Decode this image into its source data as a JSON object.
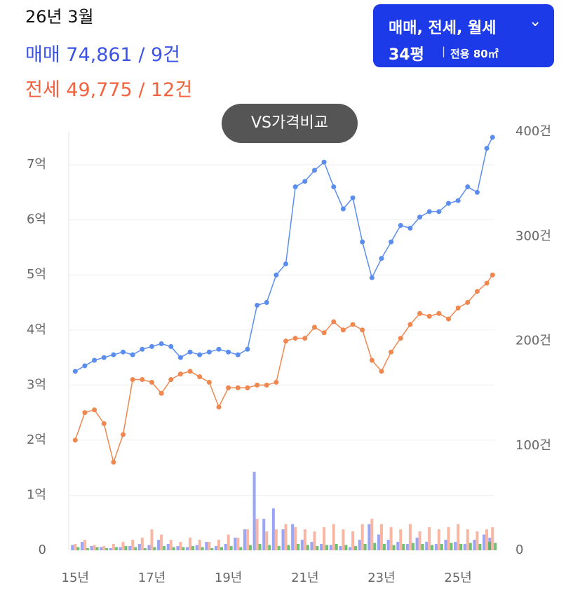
{
  "header": {
    "date": "26년 3월",
    "sale": "매매 74,861 / 9건",
    "jeonse": "전세 49,775 / 12건"
  },
  "filter": {
    "types": "매매, 전세, 월세",
    "size": "34평",
    "area": "전용 80㎡"
  },
  "compare_button": "VS가격비교",
  "chart_data": {
    "type": "line-bar",
    "x": [
      15,
      15.25,
      15.5,
      15.75,
      16,
      16.25,
      16.5,
      16.75,
      17,
      17.25,
      17.5,
      17.75,
      18,
      18.25,
      18.5,
      18.75,
      19,
      19.25,
      19.5,
      19.75,
      20,
      20.25,
      20.5,
      20.75,
      21,
      21.25,
      21.5,
      21.75,
      22,
      22.25,
      22.5,
      22.75,
      23,
      23.25,
      23.5,
      23.75,
      24,
      24.25,
      24.5,
      24.75,
      25,
      25.25,
      25.5,
      25.75,
      25.9
    ],
    "xlim": [
      14.83,
      25.95
    ],
    "xticks": [
      {
        "value": 15,
        "label": "15년"
      },
      {
        "value": 17,
        "label": "17년"
      },
      {
        "value": 19,
        "label": "19년"
      },
      {
        "value": 21,
        "label": "21년"
      },
      {
        "value": 23,
        "label": "23년"
      },
      {
        "value": 25,
        "label": "25년"
      }
    ],
    "ylim": [
      0,
      7.6
    ],
    "yticks": [
      0,
      {
        "value": 1,
        "label": "1억"
      },
      {
        "value": 2,
        "label": "2억"
      },
      {
        "value": 3,
        "label": "3억"
      },
      {
        "value": 4,
        "label": "4억"
      },
      {
        "value": 5,
        "label": "5억"
      },
      {
        "value": 6,
        "label": "6억"
      },
      {
        "value": 7,
        "label": "7억"
      }
    ],
    "y2lim": [
      0,
      400
    ],
    "y2ticks": [
      0,
      {
        "value": 100,
        "label": "100건"
      },
      {
        "value": 200,
        "label": "200건"
      },
      {
        "value": 300,
        "label": "300건"
      },
      {
        "value": 400,
        "label": "400건"
      }
    ],
    "grid": true,
    "series": [
      {
        "kind": "line",
        "color": "#5b8def",
        "values": [
          3.25,
          3.35,
          3.45,
          3.5,
          3.55,
          3.6,
          3.55,
          3.65,
          3.7,
          3.75,
          3.7,
          3.5,
          3.6,
          3.55,
          3.6,
          3.65,
          3.6,
          3.55,
          3.65,
          4.45,
          4.5,
          5.0,
          5.2,
          6.6,
          6.7,
          6.9,
          7.05,
          6.6,
          6.2,
          6.4,
          5.6,
          4.95,
          5.3,
          5.6,
          5.9,
          5.85,
          6.05,
          6.15,
          6.15,
          6.3,
          6.35,
          6.6,
          6.5,
          7.3,
          7.5
        ]
      },
      {
        "kind": "line",
        "color": "#f0874f",
        "values": [
          2.0,
          2.5,
          2.55,
          2.3,
          1.6,
          2.1,
          3.1,
          3.1,
          3.05,
          2.85,
          3.1,
          3.2,
          3.25,
          3.15,
          3.05,
          2.6,
          2.95,
          2.95,
          2.95,
          3.0,
          3.0,
          3.05,
          3.8,
          3.85,
          3.85,
          4.05,
          3.95,
          4.15,
          4.0,
          4.1,
          4.0,
          3.45,
          3.25,
          3.6,
          3.85,
          4.1,
          4.3,
          4.25,
          4.3,
          4.2,
          4.4,
          4.5,
          4.7,
          4.85,
          5.0
        ]
      },
      {
        "kind": "bar",
        "axis": "y2",
        "color": "#7f8ff5",
        "values": [
          5,
          8,
          4,
          3,
          2,
          3,
          4,
          6,
          5,
          10,
          6,
          4,
          3,
          5,
          8,
          4,
          6,
          12,
          20,
          75,
          30,
          40,
          20,
          25,
          10,
          8,
          6,
          5,
          4,
          3,
          10,
          25,
          15,
          10,
          8,
          6,
          12,
          8,
          6,
          10,
          8,
          6,
          10,
          15,
          12
        ]
      },
      {
        "kind": "bar",
        "axis": "y2",
        "color": "#f7a48c",
        "values": [
          6,
          10,
          5,
          4,
          6,
          8,
          10,
          12,
          20,
          15,
          10,
          8,
          12,
          10,
          8,
          10,
          15,
          12,
          20,
          30,
          18,
          20,
          25,
          22,
          20,
          18,
          22,
          25,
          20,
          18,
          25,
          30,
          25,
          22,
          20,
          25,
          18,
          22,
          20,
          22,
          25,
          20,
          18,
          20,
          22
        ]
      },
      {
        "kind": "bar",
        "axis": "y2",
        "color": "#4caf50",
        "values": [
          3,
          2,
          3,
          2,
          3,
          4,
          3,
          2,
          3,
          4,
          3,
          3,
          4,
          3,
          2,
          3,
          4,
          3,
          5,
          6,
          5,
          4,
          5,
          6,
          5,
          4,
          5,
          6,
          5,
          4,
          6,
          7,
          6,
          5,
          6,
          7,
          6,
          5,
          6,
          7,
          6,
          7,
          6,
          8,
          7
        ]
      }
    ]
  }
}
